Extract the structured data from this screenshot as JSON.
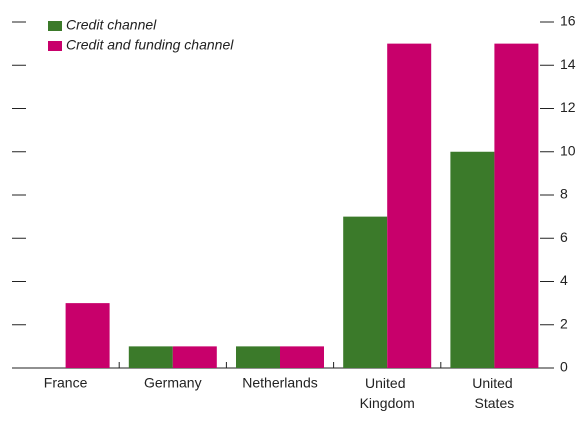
{
  "chart_data": {
    "type": "bar",
    "categories": [
      "France",
      "Germany",
      "Netherlands",
      "United Kingdom",
      "United States"
    ],
    "series": [
      {
        "name": "Credit channel",
        "color": "#3b7a2a",
        "values": [
          0,
          1,
          1,
          7,
          10
        ]
      },
      {
        "name": "Credit and funding channel",
        "color": "#c8006b",
        "values": [
          3,
          1,
          1,
          15,
          15
        ]
      }
    ],
    "ylim": [
      0,
      16
    ],
    "yticks": [
      0,
      2,
      4,
      6,
      8,
      10,
      12,
      14,
      16
    ],
    "y_axis_side": "right",
    "legend": "top-left"
  }
}
